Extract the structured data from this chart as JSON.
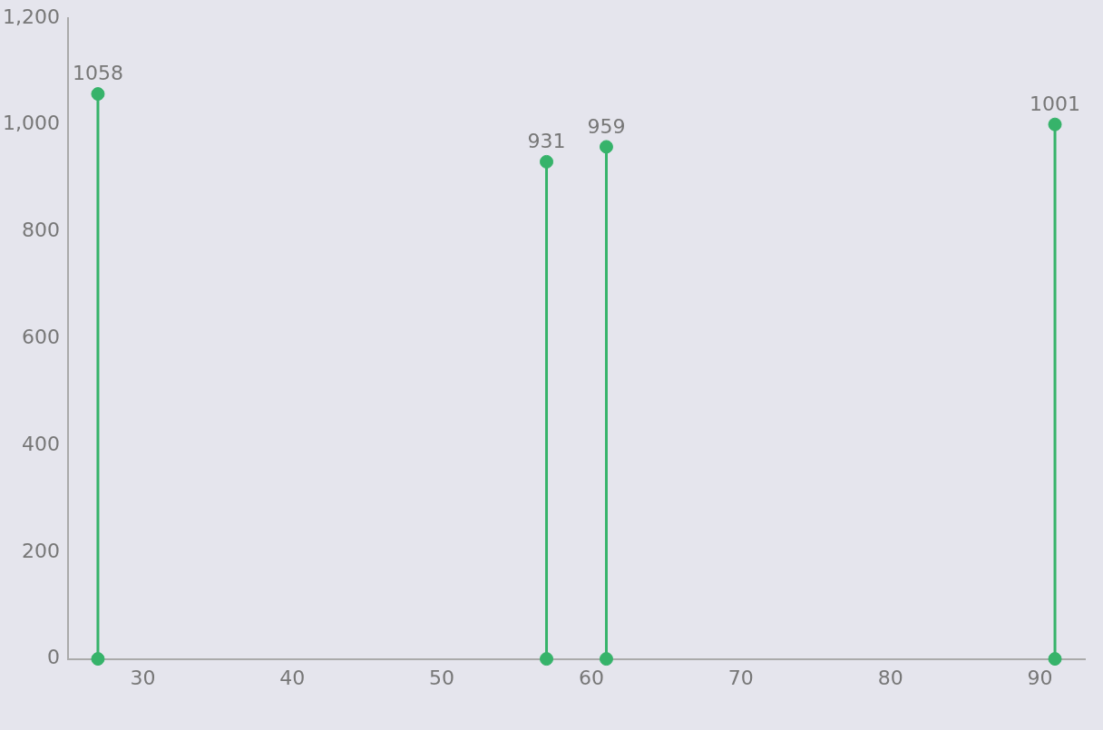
{
  "chart_data": {
    "type": "lollipop",
    "x": [
      27,
      57,
      61,
      91
    ],
    "marker": "circle",
    "series": [
      {
        "type": "lollipop",
        "color": "#36b36a",
        "values": [
          1058,
          931,
          959,
          1001
        ],
        "value_labels": [
          "1058",
          "931",
          "959",
          "1001"
        ]
      },
      {
        "type": "scatter",
        "color": "#36b36a",
        "values": [
          0,
          0,
          0,
          0
        ]
      }
    ],
    "xlim": [
      25,
      93
    ],
    "xticks": [
      30,
      40,
      50,
      60,
      70,
      80,
      90
    ],
    "ylim": [
      0,
      1200
    ],
    "yticks": [
      0,
      200,
      400,
      600,
      800,
      {
        "value": 1000,
        "label": "1,000"
      },
      {
        "value": 1200,
        "label": "1,200"
      }
    ]
  }
}
